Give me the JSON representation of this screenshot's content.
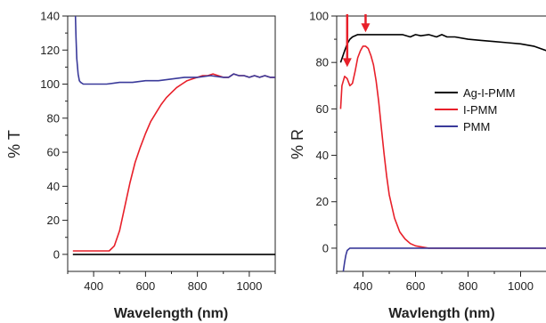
{
  "chart_data": [
    {
      "type": "line",
      "xlabel": "Wavelength (nm)",
      "ylabel": "% T",
      "xlim": [
        300,
        1100
      ],
      "ylim": [
        -10,
        140
      ],
      "xticks": [
        400,
        600,
        800,
        1000
      ],
      "yticks": [
        0,
        20,
        40,
        60,
        80,
        100,
        120,
        140
      ],
      "grid": false,
      "series": [
        {
          "color": "#000000",
          "x": [
            320,
            1100
          ],
          "y": [
            0,
            0
          ]
        },
        {
          "color": "#e8202a",
          "x": [
            320,
            460,
            480,
            500,
            520,
            540,
            560,
            580,
            600,
            620,
            640,
            660,
            680,
            700,
            720,
            740,
            760,
            780,
            800,
            820,
            840,
            860,
            880,
            900,
            920,
            940,
            960,
            980,
            1000,
            1020,
            1040,
            1060,
            1080,
            1100
          ],
          "y": [
            2,
            2,
            5,
            14,
            28,
            42,
            54,
            63,
            71,
            78,
            83,
            88,
            92,
            95,
            98,
            100,
            102,
            103,
            104,
            105,
            105,
            106,
            105,
            104,
            104,
            106,
            105,
            105,
            104,
            105,
            104,
            105,
            104,
            104
          ]
        },
        {
          "color": "#3a3a9a",
          "x": [
            330,
            332,
            335,
            340,
            345,
            350,
            360,
            380,
            400,
            450,
            500,
            550,
            600,
            650,
            700,
            750,
            800,
            850,
            900,
            920,
            940,
            960,
            980,
            1000,
            1020,
            1040,
            1060,
            1080,
            1100
          ],
          "y": [
            140,
            128,
            115,
            106,
            102,
            101,
            100,
            100,
            100,
            100,
            101,
            101,
            102,
            102,
            103,
            104,
            104,
            105,
            104,
            104,
            106,
            105,
            105,
            104,
            105,
            104,
            105,
            104,
            104
          ]
        }
      ]
    },
    {
      "type": "line",
      "xlabel": "Wavlength (nm)",
      "ylabel": "% R",
      "xlim": [
        300,
        1100
      ],
      "ylim": [
        -10,
        100
      ],
      "xticks": [
        400,
        600,
        800,
        1000
      ],
      "yticks": [
        0,
        20,
        40,
        60,
        80,
        100
      ],
      "grid": false,
      "legend": {
        "placement": "right",
        "entries": [
          "Ag-I-PMM",
          "I-PMM",
          "PMM"
        ]
      },
      "annotations": [
        {
          "type": "arrow",
          "x": 340,
          "color": "#e8202a"
        },
        {
          "type": "arrow",
          "x": 410,
          "color": "#e8202a"
        }
      ],
      "series": [
        {
          "name": "Ag-I-PMM",
          "color": "#000000",
          "x": [
            315,
            330,
            340,
            350,
            360,
            380,
            400,
            450,
            500,
            550,
            580,
            600,
            620,
            650,
            680,
            700,
            720,
            750,
            800,
            850,
            900,
            950,
            1000,
            1050,
            1100
          ],
          "y": [
            80,
            85,
            88,
            90,
            91,
            92,
            92,
            92,
            92,
            92,
            91,
            92,
            91.5,
            92,
            91,
            92,
            91,
            91,
            90,
            89.5,
            89,
            88.5,
            88,
            87,
            85
          ]
        },
        {
          "name": "I-PMM",
          "color": "#e8202a",
          "x": [
            315,
            320,
            330,
            340,
            350,
            360,
            370,
            380,
            390,
            400,
            410,
            420,
            430,
            440,
            450,
            460,
            470,
            480,
            490,
            500,
            520,
            540,
            560,
            580,
            600,
            650,
            700,
            750,
            800,
            900,
            1000,
            1100
          ],
          "y": [
            60,
            70,
            74,
            73,
            70,
            71,
            76,
            82,
            85,
            87,
            87,
            86,
            83,
            79,
            72,
            63,
            52,
            41,
            31,
            23,
            13,
            7,
            4,
            2,
            1,
            0,
            0,
            0,
            0,
            0,
            0,
            0
          ]
        },
        {
          "name": "PMM",
          "color": "#3a3a9a",
          "x": [
            325,
            330,
            335,
            340,
            350,
            370,
            400,
            500,
            600,
            700,
            800,
            900,
            1000,
            1100
          ],
          "y": [
            -10,
            -6,
            -3,
            -1,
            0,
            0,
            0,
            0,
            0,
            0,
            0,
            0,
            0,
            0
          ]
        }
      ]
    }
  ]
}
